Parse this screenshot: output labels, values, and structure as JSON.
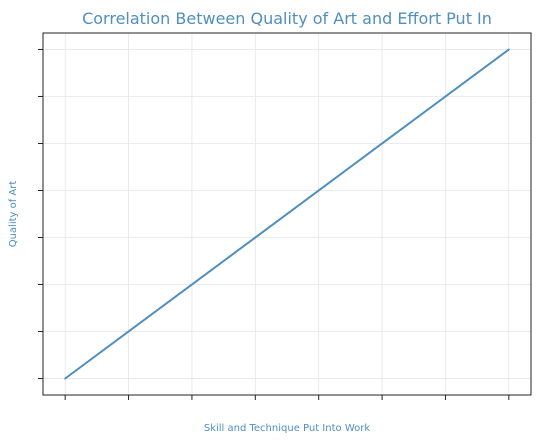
{
  "chart_data": {
    "type": "line",
    "title": "Correlation Between Quality of Art and Effort Put In",
    "xlabel": "Skill and Technique Put Into Work",
    "ylabel": "Quality of Art",
    "x": [
      0,
      7
    ],
    "series": [
      {
        "values": [
          0,
          7
        ]
      }
    ],
    "xlim": [
      -0.35,
      7.35
    ],
    "ylim": [
      -0.35,
      7.35
    ],
    "x_ticks": [
      0,
      1,
      2,
      3,
      4,
      5,
      6,
      7
    ],
    "y_ticks": [
      0,
      1,
      2,
      3,
      4,
      5,
      6,
      7
    ],
    "tick_labels_shown": false,
    "grid": true,
    "line_color": "#4f8fc0"
  }
}
